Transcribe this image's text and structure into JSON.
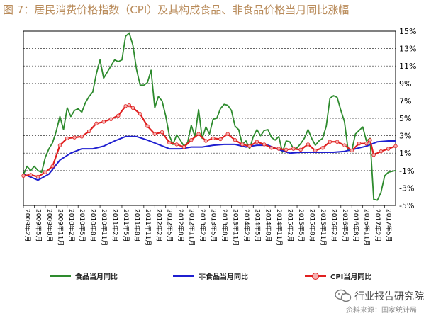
{
  "chart_data": {
    "type": "line",
    "title": "图 7：居民消费价格指数（CPI）及其构成食品、非食品价格当月同比涨幅",
    "source_note": "资料来源：国家统计局",
    "watermark": "行业报告研究院",
    "ylim": [
      -5,
      15
    ],
    "yticks": [
      "-5%",
      "-3%",
      "-1%",
      "1%",
      "3%",
      "5%",
      "7%",
      "9%",
      "11%",
      "13%",
      "15%"
    ],
    "ytick_values": [
      -5,
      -3,
      -1,
      1,
      3,
      5,
      7,
      9,
      11,
      13,
      15
    ],
    "x_range": [
      "2009-02",
      "2017-08"
    ],
    "xtick_labels": [
      "2009年2月",
      "2009年5月",
      "2009年8月",
      "2009年11月",
      "2010年2月",
      "2010年5月",
      "2010年8月",
      "2010年11月",
      "2011年2月",
      "2011年5月",
      "2011年8月",
      "2011年11月",
      "2012年2月",
      "2012年5月",
      "2012年8月",
      "2012年11月",
      "2013年2月",
      "2013年5月",
      "2013年8月",
      "2013年11月",
      "2014年2月",
      "2014年5月",
      "2014年8月",
      "2014年11月",
      "2015年2月",
      "2015年5月",
      "2015年8月",
      "2015年11月",
      "2016年2月",
      "2016年5月",
      "2016年8月",
      "2016年11月",
      "2017年2月",
      "2017年5月"
    ],
    "legend_placement": "bottom",
    "grid": "horizontal dotted",
    "series": [
      {
        "name": "食品当月同比",
        "color": "#2e8b2e",
        "x": [
          "2009-02",
          "2009-03",
          "2009-04",
          "2009-05",
          "2009-06",
          "2009-07",
          "2009-08",
          "2009-09",
          "2009-10",
          "2009-11",
          "2009-12",
          "2010-01",
          "2010-02",
          "2010-03",
          "2010-04",
          "2010-05",
          "2010-06",
          "2010-07",
          "2010-08",
          "2010-09",
          "2010-10",
          "2010-11",
          "2010-12",
          "2011-01",
          "2011-02",
          "2011-03",
          "2011-04",
          "2011-05",
          "2011-06",
          "2011-07",
          "2011-08",
          "2011-09",
          "2011-10",
          "2011-11",
          "2011-12",
          "2012-01",
          "2012-02",
          "2012-03",
          "2012-04",
          "2012-05",
          "2012-06",
          "2012-07",
          "2012-08",
          "2012-09",
          "2012-10",
          "2012-11",
          "2012-12",
          "2013-01",
          "2013-02",
          "2013-03",
          "2013-04",
          "2013-05",
          "2013-06",
          "2013-07",
          "2013-08",
          "2013-09",
          "2013-10",
          "2013-11",
          "2013-12",
          "2014-01",
          "2014-02",
          "2014-03",
          "2014-04",
          "2014-05",
          "2014-06",
          "2014-07",
          "2014-08",
          "2014-09",
          "2014-10",
          "2014-11",
          "2014-12",
          "2015-01",
          "2015-02",
          "2015-03",
          "2015-04",
          "2015-05",
          "2015-06",
          "2015-07",
          "2015-08",
          "2015-09",
          "2015-10",
          "2015-11",
          "2015-12",
          "2016-01",
          "2016-02",
          "2016-03",
          "2016-04",
          "2016-05",
          "2016-06",
          "2016-07",
          "2016-08",
          "2016-09",
          "2016-10",
          "2016-11",
          "2016-12",
          "2017-01",
          "2017-02",
          "2017-03",
          "2017-04",
          "2017-05",
          "2017-06",
          "2017-07",
          "2017-08"
        ],
        "values": [
          -1.5,
          -0.5,
          -1.0,
          -0.5,
          -1.0,
          -1.2,
          0.5,
          1.5,
          2.2,
          3.5,
          5.2,
          3.7,
          6.2,
          5.2,
          5.9,
          6.1,
          5.7,
          6.8,
          7.5,
          8.0,
          10.1,
          11.7,
          9.6,
          10.3,
          11.0,
          11.7,
          11.5,
          11.7,
          14.4,
          14.8,
          13.4,
          10.6,
          8.8,
          8.8,
          9.1,
          10.5,
          6.2,
          7.5,
          7.0,
          5.3,
          3.0,
          2.0,
          3.1,
          2.5,
          1.8,
          2.2,
          4.2,
          2.9,
          6.0,
          2.7,
          4.0,
          3.2,
          4.9,
          5.0,
          6.1,
          6.6,
          6.5,
          5.9,
          4.1,
          3.7,
          2.0,
          2.4,
          1.5,
          2.9,
          3.7,
          3.0,
          3.6,
          3.7,
          2.8,
          2.5,
          2.9,
          1.1,
          2.4,
          2.3,
          1.5,
          1.6,
          2.1,
          2.7,
          3.7,
          2.7,
          1.9,
          2.4,
          2.7,
          4.1,
          7.3,
          7.6,
          7.4,
          5.9,
          4.6,
          1.3,
          1.3,
          3.2,
          3.6,
          4.0,
          2.4,
          2.7,
          -4.3,
          -4.4,
          -3.5,
          -1.6,
          -1.2,
          -1.1,
          -1.0
        ]
      },
      {
        "name": "非食品当月同比",
        "color": "#1f1fd0",
        "x": [
          "2009-02",
          "2009-06",
          "2009-09",
          "2009-12",
          "2010-03",
          "2010-06",
          "2010-09",
          "2010-12",
          "2011-03",
          "2011-06",
          "2011-09",
          "2011-12",
          "2012-03",
          "2012-06",
          "2012-09",
          "2012-12",
          "2013-03",
          "2013-06",
          "2013-09",
          "2013-12",
          "2014-03",
          "2014-06",
          "2014-09",
          "2014-12",
          "2015-03",
          "2015-06",
          "2015-09",
          "2015-12",
          "2016-03",
          "2016-06",
          "2016-09",
          "2016-12",
          "2017-03",
          "2017-06",
          "2017-08"
        ],
        "values": [
          -1.4,
          -2.1,
          -1.4,
          0.2,
          1.0,
          1.5,
          1.5,
          1.8,
          2.4,
          2.9,
          2.9,
          2.5,
          2.0,
          1.5,
          1.5,
          1.7,
          1.7,
          1.9,
          2.0,
          2.0,
          1.7,
          1.9,
          1.9,
          1.4,
          1.0,
          1.1,
          1.1,
          1.1,
          1.1,
          1.2,
          1.5,
          1.8,
          2.3,
          2.4,
          2.4
        ]
      },
      {
        "name": "CPI当月同比",
        "color": "#e02020",
        "x": [
          "2009-02",
          "2009-04",
          "2009-06",
          "2009-08",
          "2009-10",
          "2009-12",
          "2010-02",
          "2010-04",
          "2010-06",
          "2010-08",
          "2010-10",
          "2010-12",
          "2011-02",
          "2011-04",
          "2011-06",
          "2011-07",
          "2011-08",
          "2011-10",
          "2011-12",
          "2012-02",
          "2012-04",
          "2012-06",
          "2012-08",
          "2012-10",
          "2012-12",
          "2013-02",
          "2013-04",
          "2013-06",
          "2013-08",
          "2013-10",
          "2013-12",
          "2014-02",
          "2014-04",
          "2014-06",
          "2014-08",
          "2014-10",
          "2014-12",
          "2015-02",
          "2015-04",
          "2015-06",
          "2015-08",
          "2015-10",
          "2015-12",
          "2016-02",
          "2016-04",
          "2016-06",
          "2016-08",
          "2016-10",
          "2016-12",
          "2017-01",
          "2017-02",
          "2017-04",
          "2017-06",
          "2017-08"
        ],
        "values": [
          -1.6,
          -1.5,
          -1.7,
          -1.2,
          -0.5,
          1.9,
          2.7,
          2.8,
          2.9,
          3.5,
          4.4,
          4.6,
          4.9,
          5.3,
          6.4,
          6.5,
          6.2,
          5.5,
          4.1,
          3.2,
          3.4,
          2.2,
          2.0,
          1.7,
          2.5,
          3.2,
          2.4,
          2.7,
          2.6,
          3.2,
          2.5,
          2.0,
          1.8,
          2.3,
          2.0,
          1.6,
          1.5,
          1.4,
          1.5,
          1.4,
          2.0,
          1.3,
          1.6,
          2.3,
          2.3,
          1.9,
          1.3,
          2.1,
          2.1,
          2.5,
          0.8,
          1.2,
          1.5,
          1.8
        ]
      }
    ]
  }
}
